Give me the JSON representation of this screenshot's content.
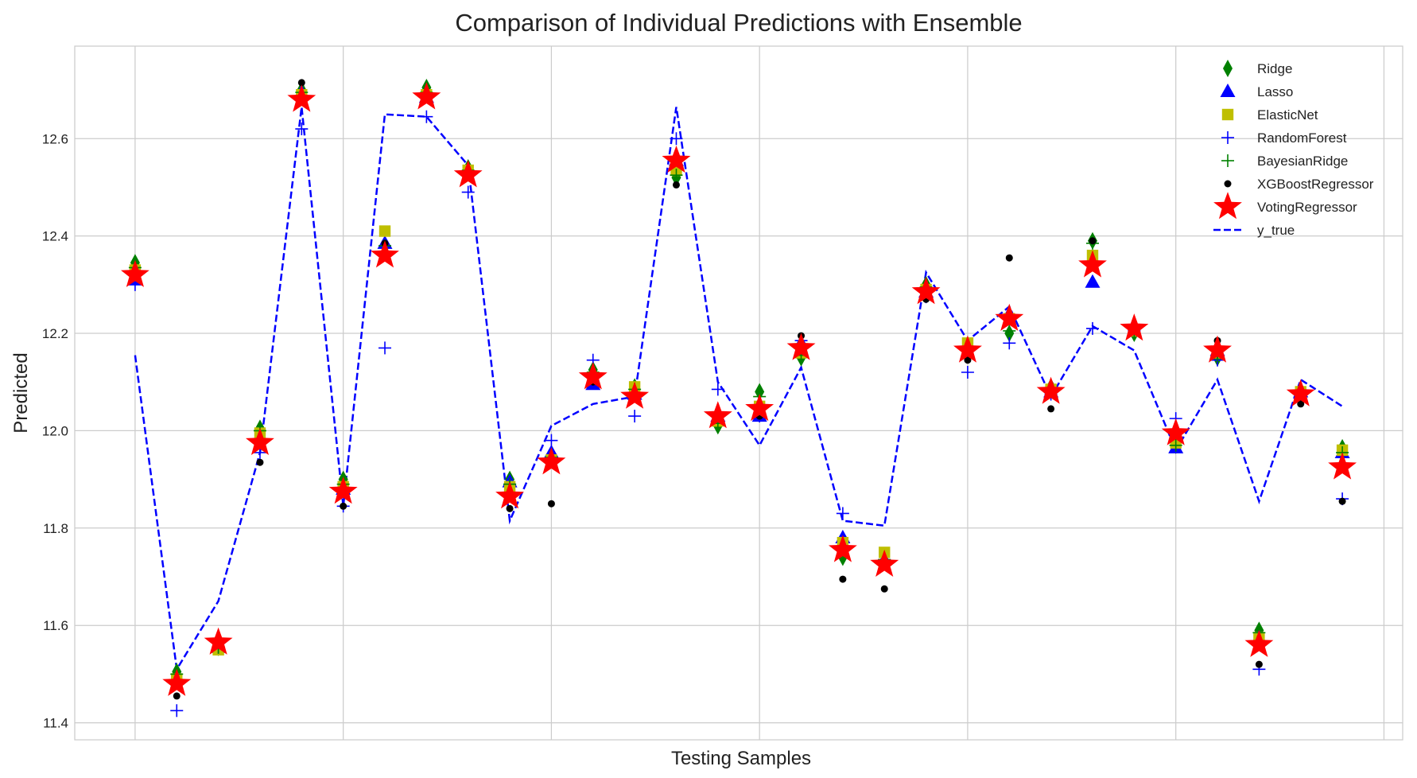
{
  "chart_data": {
    "type": "scatter",
    "title": "Comparison of Individual Predictions with Ensemble",
    "xlabel": "Testing Samples",
    "ylabel": "Predicted",
    "x": [
      0,
      1,
      2,
      3,
      4,
      5,
      6,
      7,
      8,
      9,
      10,
      11,
      12,
      13,
      14,
      15,
      16,
      17,
      18,
      19,
      20,
      21,
      22,
      23,
      24,
      25,
      26,
      27,
      28,
      29
    ],
    "xlim": [
      -1.45,
      30.45
    ],
    "ylim": [
      11.365,
      12.79
    ],
    "yticks": [
      "11.4",
      "11.6",
      "11.8",
      "12.0",
      "12.2",
      "12.4",
      "12.6"
    ],
    "x_gridlines": [
      0,
      5,
      10,
      15,
      20,
      25,
      30
    ],
    "grid": true,
    "legend_position": "top-right",
    "series": [
      {
        "name": "Ridge",
        "marker": "diamond",
        "color": "#008000",
        "values": [
          12.345,
          11.505,
          11.555,
          12.005,
          12.7,
          11.9,
          12.38,
          12.705,
          12.54,
          11.9,
          11.945,
          12.125,
          12.09,
          12.52,
          12.01,
          12.08,
          12.15,
          11.74,
          11.73,
          12.3,
          12.17,
          12.2,
          12.09,
          12.39,
          12.2,
          11.97,
          12.15,
          11.59,
          12.075,
          11.965
        ]
      },
      {
        "name": "Lasso",
        "marker": "triangle",
        "color": "#0000ff",
        "values": [
          12.31,
          11.49,
          11.555,
          11.985,
          12.695,
          11.88,
          12.385,
          12.685,
          12.535,
          11.895,
          11.955,
          12.095,
          12.075,
          12.555,
          12.03,
          12.03,
          12.18,
          11.78,
          11.735,
          12.285,
          12.175,
          12.24,
          12.08,
          12.305,
          12.205,
          11.965,
          12.165,
          11.575,
          12.08,
          11.955
        ]
      },
      {
        "name": "ElasticNet",
        "marker": "square",
        "color": "#bfbf00",
        "values": [
          12.33,
          11.49,
          11.55,
          11.995,
          12.69,
          11.885,
          12.41,
          12.69,
          12.535,
          11.885,
          11.94,
          12.11,
          12.09,
          12.535,
          12.02,
          12.05,
          12.16,
          11.77,
          11.75,
          12.29,
          12.18,
          12.23,
          12.085,
          12.36,
          12.205,
          11.975,
          12.16,
          11.575,
          12.08,
          11.96
        ]
      },
      {
        "name": "RandomForest",
        "marker": "plus",
        "color": "#0000ff",
        "values": [
          12.3,
          11.425,
          11.555,
          11.955,
          12.62,
          11.845,
          12.17,
          12.645,
          12.49,
          11.89,
          11.98,
          12.145,
          12.03,
          12.6,
          12.085,
          12.03,
          12.185,
          11.83,
          11.735,
          12.275,
          12.12,
          12.18,
          12.075,
          12.21,
          12.205,
          12.025,
          12.145,
          11.51,
          12.075,
          11.86
        ]
      },
      {
        "name": "BayesianRidge",
        "marker": "plus",
        "color": "#008000",
        "values": [
          12.335,
          11.5,
          11.555,
          12.0,
          12.695,
          11.89,
          12.38,
          12.695,
          12.535,
          11.89,
          11.945,
          12.12,
          12.085,
          12.525,
          12.015,
          12.07,
          12.155,
          11.755,
          11.735,
          12.295,
          12.17,
          12.205,
          12.085,
          12.385,
          12.2,
          11.97,
          12.155,
          11.585,
          12.08,
          11.955
        ]
      },
      {
        "name": "XGBoostRegressor",
        "marker": "circle",
        "color": "#000000",
        "values": [
          12.33,
          11.455,
          11.565,
          11.935,
          12.715,
          11.845,
          12.385,
          12.69,
          12.52,
          11.84,
          11.85,
          12.1,
          12.065,
          12.505,
          12.025,
          12.03,
          12.195,
          11.695,
          11.675,
          12.27,
          12.145,
          12.355,
          12.045,
          12.39,
          12.205,
          11.99,
          12.185,
          11.52,
          12.055,
          11.855
        ]
      },
      {
        "name": "VotingRegressor",
        "marker": "star",
        "color": "#ff0000",
        "values": [
          12.32,
          11.48,
          11.565,
          11.975,
          12.68,
          11.875,
          12.36,
          12.685,
          12.525,
          11.865,
          11.935,
          12.11,
          12.07,
          12.555,
          12.03,
          12.045,
          12.17,
          11.755,
          11.725,
          12.285,
          12.165,
          12.23,
          12.08,
          12.34,
          12.21,
          11.995,
          12.165,
          11.56,
          12.075,
          11.925
        ]
      },
      {
        "name": "y_true",
        "marker": "dashed-line",
        "color": "#0000ff",
        "values": [
          12.155,
          11.51,
          11.65,
          11.955,
          12.665,
          11.845,
          12.65,
          12.645,
          12.545,
          11.815,
          12.01,
          12.055,
          12.07,
          12.665,
          12.1,
          11.97,
          12.13,
          11.815,
          11.805,
          12.325,
          12.185,
          12.255,
          12.07,
          12.215,
          12.165,
          11.96,
          12.105,
          11.855,
          12.105,
          12.05
        ]
      }
    ]
  }
}
